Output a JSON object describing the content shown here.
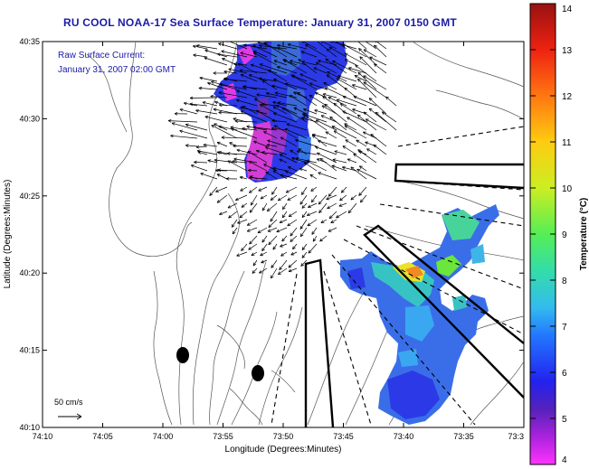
{
  "title": "RU COOL  NOAA-17  Sea Surface Temperature:  January 31, 2007 0150 GMT",
  "annotation": {
    "line1": "Raw Surface Current:",
    "line2": "January 31, 2007 02:00 GMT"
  },
  "scale_label": "50 cm/s",
  "axes": {
    "xlabel": "Longitude (Degrees:Minutes)",
    "ylabel": "Latitude (Degrees:Minutes)",
    "xticks": [
      "74:10",
      "74:05",
      "74:00",
      "73:55",
      "73:50",
      "73:45",
      "73:40",
      "73:35",
      "73:3"
    ],
    "yticks": [
      "40:35",
      "40:30",
      "40:25",
      "40:20",
      "40:15",
      "40:10"
    ]
  },
  "colorbar": {
    "label": "Temperature (°C)",
    "ticks": [
      "14",
      "13",
      "12",
      "11",
      "10",
      "9",
      "8",
      "7",
      "6",
      "5",
      "4"
    ],
    "min": 4,
    "max": 14,
    "colors": [
      "#ff33ff",
      "#6633cc",
      "#2222ee",
      "#3399ff",
      "#33ccdd",
      "#33dd99",
      "#66ee33",
      "#dddd22",
      "#ff9922",
      "#ee3311",
      "#bb1111",
      "#991111"
    ]
  }
}
